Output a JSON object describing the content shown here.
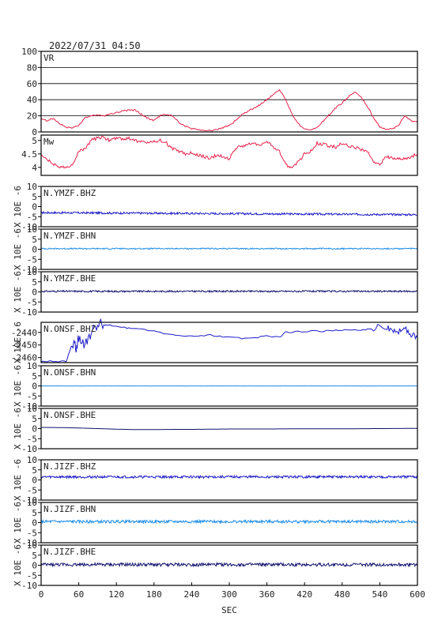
{
  "header": {
    "timestamp": "2022/07/31 04:50"
  },
  "xaxis": {
    "label": "SEC",
    "ticks": [
      0,
      60,
      120,
      180,
      240,
      300,
      360,
      420,
      480,
      540,
      600
    ],
    "range": [
      0,
      600
    ]
  },
  "colors": {
    "red": "#e8204a",
    "blue": "#1c1cc8",
    "lightblue": "#1e8ce6",
    "navy": "#10106e",
    "grid": "#000000",
    "frame": "#000000"
  },
  "chart_data": [
    {
      "type": "line",
      "title": "VR",
      "ylim": [
        0,
        100
      ],
      "yticks": [
        0,
        20,
        40,
        60,
        80,
        100
      ],
      "grid": true,
      "color": "red",
      "x": [
        0,
        10,
        20,
        30,
        40,
        50,
        60,
        70,
        80,
        90,
        100,
        110,
        120,
        130,
        140,
        150,
        160,
        170,
        180,
        190,
        200,
        210,
        220,
        230,
        240,
        250,
        260,
        270,
        280,
        290,
        300,
        310,
        320,
        330,
        340,
        350,
        360,
        370,
        380,
        390,
        400,
        410,
        420,
        430,
        440,
        450,
        460,
        470,
        480,
        490,
        500,
        510,
        520,
        530,
        540,
        550,
        560,
        570,
        580,
        590,
        600
      ],
      "values": [
        16,
        14,
        17,
        10,
        6,
        5,
        8,
        18,
        20,
        21,
        20,
        22,
        24,
        26,
        27,
        27,
        22,
        17,
        14,
        20,
        22,
        20,
        12,
        7,
        4,
        3,
        2,
        2,
        3,
        5,
        8,
        14,
        22,
        26,
        30,
        34,
        40,
        46,
        52,
        40,
        22,
        10,
        3,
        2,
        5,
        14,
        22,
        30,
        36,
        44,
        50,
        44,
        32,
        18,
        6,
        3,
        4,
        8,
        20,
        14,
        12
      ]
    },
    {
      "type": "line",
      "title": "Mw",
      "ylim": [
        3.7,
        5.2
      ],
      "yticks": [
        4.0,
        4.5,
        5.0
      ],
      "grid": false,
      "color": "red",
      "x": [
        0,
        10,
        20,
        30,
        40,
        50,
        60,
        70,
        80,
        90,
        100,
        110,
        120,
        130,
        140,
        150,
        160,
        170,
        180,
        190,
        200,
        210,
        220,
        230,
        240,
        250,
        260,
        270,
        280,
        290,
        300,
        310,
        320,
        330,
        340,
        350,
        360,
        370,
        380,
        390,
        400,
        410,
        420,
        430,
        440,
        450,
        460,
        470,
        480,
        490,
        500,
        510,
        520,
        530,
        540,
        550,
        560,
        570,
        580,
        590,
        600
      ],
      "values": [
        4.5,
        4.3,
        4.1,
        4.0,
        4.0,
        4.1,
        4.6,
        4.7,
        5.0,
        5.1,
        5.1,
        5.0,
        5.1,
        5.05,
        5.1,
        5.0,
        4.95,
        4.9,
        4.95,
        5.0,
        4.9,
        4.7,
        4.6,
        4.5,
        4.55,
        4.45,
        4.4,
        4.35,
        4.45,
        4.4,
        4.3,
        4.7,
        4.8,
        4.85,
        4.9,
        4.8,
        4.95,
        4.75,
        4.6,
        4.1,
        3.95,
        4.2,
        4.5,
        4.6,
        4.9,
        4.85,
        4.8,
        4.75,
        4.9,
        4.8,
        4.75,
        4.65,
        4.6,
        4.2,
        4.1,
        4.4,
        4.35,
        4.3,
        4.3,
        4.4,
        4.5
      ]
    },
    {
      "type": "line",
      "title": "N.YMZF.BHZ",
      "ylabel": "X 10E -6",
      "ylim": [
        -10,
        10
      ],
      "yticks": [
        -10,
        -5,
        0,
        5,
        10
      ],
      "grid": false,
      "color": "blue",
      "baseline": [
        -3,
        -4
      ],
      "noise": 0.5
    },
    {
      "type": "line",
      "title": "N.YMZF.BHN",
      "ylabel": "X 10E -6",
      "ylim": [
        -10,
        10
      ],
      "yticks": [
        -10,
        -5,
        0,
        5,
        10
      ],
      "grid": false,
      "color": "lightblue",
      "baseline": [
        0.3,
        0.3
      ],
      "noise": 0.3
    },
    {
      "type": "line",
      "title": "N.YMZF.BHE",
      "ylabel": "X 10E -6",
      "ylim": [
        -10,
        10
      ],
      "yticks": [
        -10,
        -5,
        0,
        5,
        10
      ],
      "grid": false,
      "color": "navy",
      "baseline": [
        0.3,
        0.3
      ],
      "noise": 0.4
    },
    {
      "type": "line",
      "title": "N.ONSF.BHZ",
      "ylabel": "X 10E -6",
      "ylim": [
        -2464,
        -2432
      ],
      "yticks": [
        -2440,
        -2450,
        -2460
      ],
      "grid": false,
      "color": "blue",
      "x": [
        0,
        20,
        40,
        50,
        55,
        60,
        70,
        80,
        90,
        100,
        110,
        130,
        150,
        180,
        210,
        240,
        270,
        300,
        330,
        360,
        380,
        390,
        420,
        450,
        480,
        510,
        530,
        550,
        560,
        570,
        580,
        590,
        600
      ],
      "values": [
        -2463,
        -2463,
        -2463,
        -2449,
        -2452,
        -2446,
        -2448,
        -2440,
        -2434,
        -2434,
        -2434,
        -2436,
        -2437,
        -2439,
        -2442,
        -2443,
        -2442,
        -2444,
        -2445,
        -2443,
        -2444,
        -2440,
        -2439,
        -2439,
        -2438,
        -2438,
        -2437,
        -2436,
        -2437,
        -2440,
        -2436,
        -2443,
        -2444
      ]
    },
    {
      "type": "line",
      "title": "N.ONSF.BHN",
      "ylabel": "X 10E -6",
      "ylim": [
        -10,
        10
      ],
      "yticks": [
        -10,
        -5,
        0,
        5,
        10
      ],
      "grid": false,
      "color": "lightblue",
      "baseline": [
        0,
        0
      ],
      "noise": 0.05
    },
    {
      "type": "line",
      "title": "N.ONSF.BHE",
      "ylabel": "X 10E -6",
      "ylim": [
        -10,
        10
      ],
      "yticks": [
        -10,
        -5,
        0,
        5,
        10
      ],
      "grid": false,
      "color": "navy",
      "x": [
        0,
        30,
        60,
        90,
        120,
        150,
        180,
        210,
        240,
        270,
        300,
        360,
        420,
        480,
        540,
        600
      ],
      "values": [
        0.6,
        0.5,
        0.3,
        0,
        -0.3,
        -0.5,
        -0.5,
        -0.4,
        -0.4,
        -0.3,
        -0.2,
        -0.2,
        -0.1,
        -0.1,
        0,
        0.1
      ]
    },
    {
      "type": "line",
      "title": "N.JIZF.BHZ",
      "ylabel": "X 10E -6",
      "ylim": [
        -10,
        10
      ],
      "yticks": [
        -10,
        -5,
        0,
        5,
        10
      ],
      "grid": false,
      "color": "blue",
      "baseline": [
        1.5,
        1.5
      ],
      "noise": 0.6
    },
    {
      "type": "line",
      "title": "N.JIZF.BHN",
      "ylabel": "X 10E -6",
      "ylim": [
        -10,
        10
      ],
      "yticks": [
        -10,
        -5,
        0,
        5,
        10
      ],
      "grid": false,
      "color": "lightblue",
      "baseline": [
        0.5,
        0.5
      ],
      "noise": 0.7
    },
    {
      "type": "line",
      "title": "N.JIZF.BHE",
      "ylabel": "X 10E -6",
      "ylim": [
        -10,
        10
      ],
      "yticks": [
        -10,
        -5,
        0,
        5,
        10
      ],
      "grid": false,
      "color": "navy",
      "baseline": [
        0.3,
        0.3
      ],
      "noise": 0.8
    }
  ]
}
